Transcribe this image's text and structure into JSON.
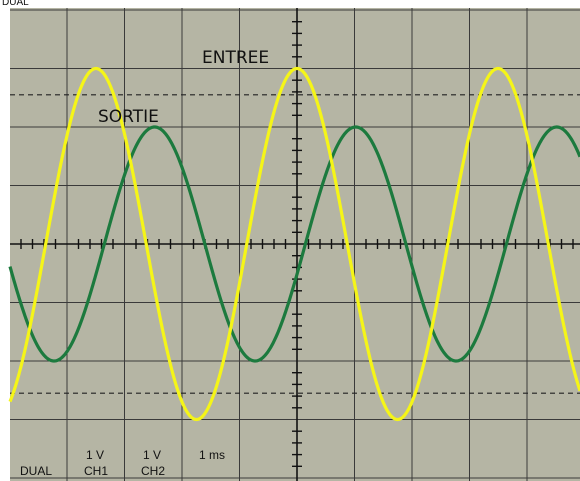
{
  "header_fragment": "DUAL",
  "annotations": {
    "input_label": "ENTREE",
    "output_label": "SORTIE"
  },
  "status_bar": {
    "mode": "DUAL",
    "ch1_scale": "1 V",
    "ch1_name": "CH1",
    "ch2_scale": "1 V",
    "ch2_name": "CH2",
    "timebase": "1 ms"
  },
  "colors": {
    "screen": "#b5b5a4",
    "grid": "#3a3a3a",
    "input": "#f5f518",
    "output": "#1c7a3e"
  },
  "chart_data": {
    "type": "line",
    "grid": true,
    "x_unit": "ms",
    "y_unit": "V",
    "xlim": [
      -5.0,
      5.0
    ],
    "ylim": [
      -4.0,
      4.0
    ],
    "series": [
      {
        "name": "ENTREE",
        "amplitude": 3.0,
        "frequency_khz": 0.286,
        "phase_deg": 90,
        "offset": 0
      },
      {
        "name": "SORTIE",
        "amplitude": 2.0,
        "frequency_khz": 0.286,
        "phase_deg": -15,
        "offset": 0
      }
    ]
  }
}
